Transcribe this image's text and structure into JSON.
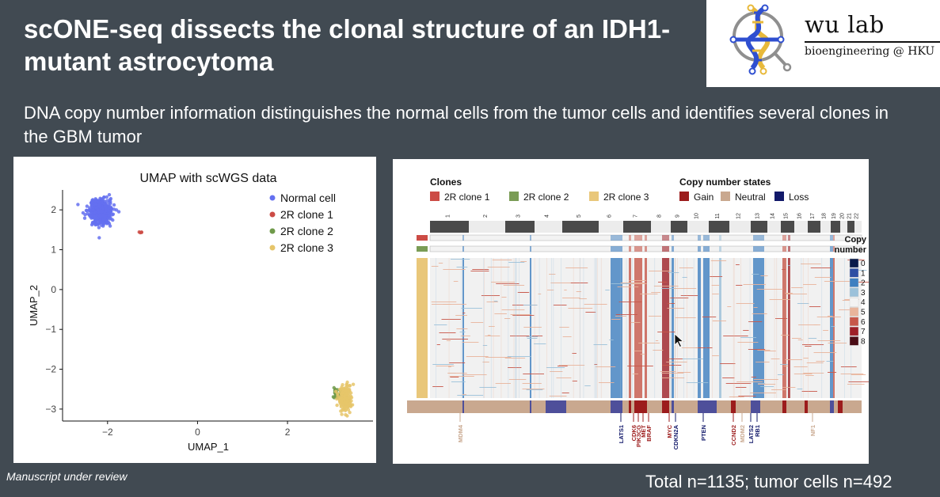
{
  "slide": {
    "title": "scONE-seq dissects the clonal structure of an IDH1-mutant astrocytoma",
    "subtitle": "DNA copy number information distinguishes the normal cells from the tumor cells and identifies several clones in the GBM tumor",
    "footnote": "Manuscript under review",
    "total": "Total n=1135; tumor cells n=492"
  },
  "logo": {
    "name": "wu lab",
    "tagline": "bioengineering @ HKU"
  },
  "umap": {
    "title": "UMAP with scWGS data",
    "xlabel": "UMAP_1",
    "ylabel": "UMAP_2",
    "xticks": [
      "−2",
      "0",
      "2"
    ],
    "yticks": [
      "2",
      "1",
      "0",
      "−1",
      "−2",
      "−3"
    ],
    "legend": [
      {
        "label": "Normal cell",
        "color": "#6470f0"
      },
      {
        "label": "2R clone 1",
        "color": "#cc4b45"
      },
      {
        "label": "2R clone 2",
        "color": "#6f9a4a"
      },
      {
        "label": "2R clone 3",
        "color": "#e6c56a"
      }
    ]
  },
  "chart_data": {
    "type": "scatter",
    "title": "UMAP with scWGS data",
    "xlabel": "UMAP_1",
    "ylabel": "UMAP_2",
    "xlim": [
      -3,
      3.9
    ],
    "ylim": [
      -3.3,
      2.5
    ],
    "grid": false,
    "legend_position": "top-right",
    "series": [
      {
        "name": "Normal cell",
        "cluster_center": [
          -2.15,
          1.95
        ],
        "cluster_spread": [
          0.22,
          0.27
        ]
      },
      {
        "name": "2R clone 1",
        "cluster_center": [
          -1.28,
          1.43
        ],
        "cluster_spread": [
          0.03,
          0.02
        ]
      },
      {
        "name": "2R clone 2",
        "cluster_center": [
          3.1,
          -2.6
        ],
        "cluster_spread": [
          0.08,
          0.12
        ]
      },
      {
        "name": "2R clone 3",
        "cluster_center": [
          3.28,
          -2.72
        ],
        "cluster_spread": [
          0.13,
          0.3
        ]
      }
    ]
  },
  "heatmap": {
    "clones_title": "Clones",
    "clones": [
      {
        "label": "2R clone 1",
        "color": "#cc4b45"
      },
      {
        "label": "2R clone 2",
        "color": "#7a9c55"
      },
      {
        "label": "2R clone 3",
        "color": "#e9c77a"
      }
    ],
    "states_title": "Copy number states",
    "states": [
      {
        "label": "Gain",
        "color": "#9c1c1c"
      },
      {
        "label": "Neutral",
        "color": "#c9a88f"
      },
      {
        "label": "Loss",
        "color": "#12196a"
      }
    ],
    "chromosomes": [
      "1",
      "2",
      "3",
      "4",
      "5",
      "6",
      "7",
      "8",
      "9",
      "10",
      "11",
      "12",
      "13",
      "14",
      "15",
      "16",
      "17",
      "18",
      "19",
      "20",
      "21",
      "22"
    ],
    "cn_legend_title": "Copy number",
    "cn_legend": [
      {
        "label": "0",
        "color": "#0a1a4a"
      },
      {
        "label": "1",
        "color": "#2d4ea3"
      },
      {
        "label": "2",
        "color": "#3f7fc0"
      },
      {
        "label": "3",
        "color": "#9cc1da"
      },
      {
        "label": "4",
        "color": "#f3f3f3"
      },
      {
        "label": "5",
        "color": "#e9b49b"
      },
      {
        "label": "6",
        "color": "#c7574a"
      },
      {
        "label": "7",
        "color": "#9e1f27"
      },
      {
        "label": "8",
        "color": "#4a0c15"
      }
    ],
    "genes": [
      {
        "label": "MDM4",
        "color": "#c9a88f"
      },
      {
        "label": "LATS1",
        "color": "#12196a"
      },
      {
        "label": "CDK6",
        "color": "#9c1c1c"
      },
      {
        "label": "PIK3CG",
        "color": "#9c1c1c"
      },
      {
        "label": "MET",
        "color": "#9c1c1c"
      },
      {
        "label": "BRAF",
        "color": "#9c1c1c"
      },
      {
        "label": "MYC",
        "color": "#9c1c1c"
      },
      {
        "label": "CDKN2A",
        "color": "#12196a"
      },
      {
        "label": "PTEN",
        "color": "#12196a"
      },
      {
        "label": "CCND2",
        "color": "#9c1c1c"
      },
      {
        "label": "MDM2",
        "color": "#c9a88f"
      },
      {
        "label": "LATS2",
        "color": "#12196a"
      },
      {
        "label": "RB1",
        "color": "#12196a"
      },
      {
        "label": "NF1",
        "color": "#c9a88f"
      }
    ]
  }
}
